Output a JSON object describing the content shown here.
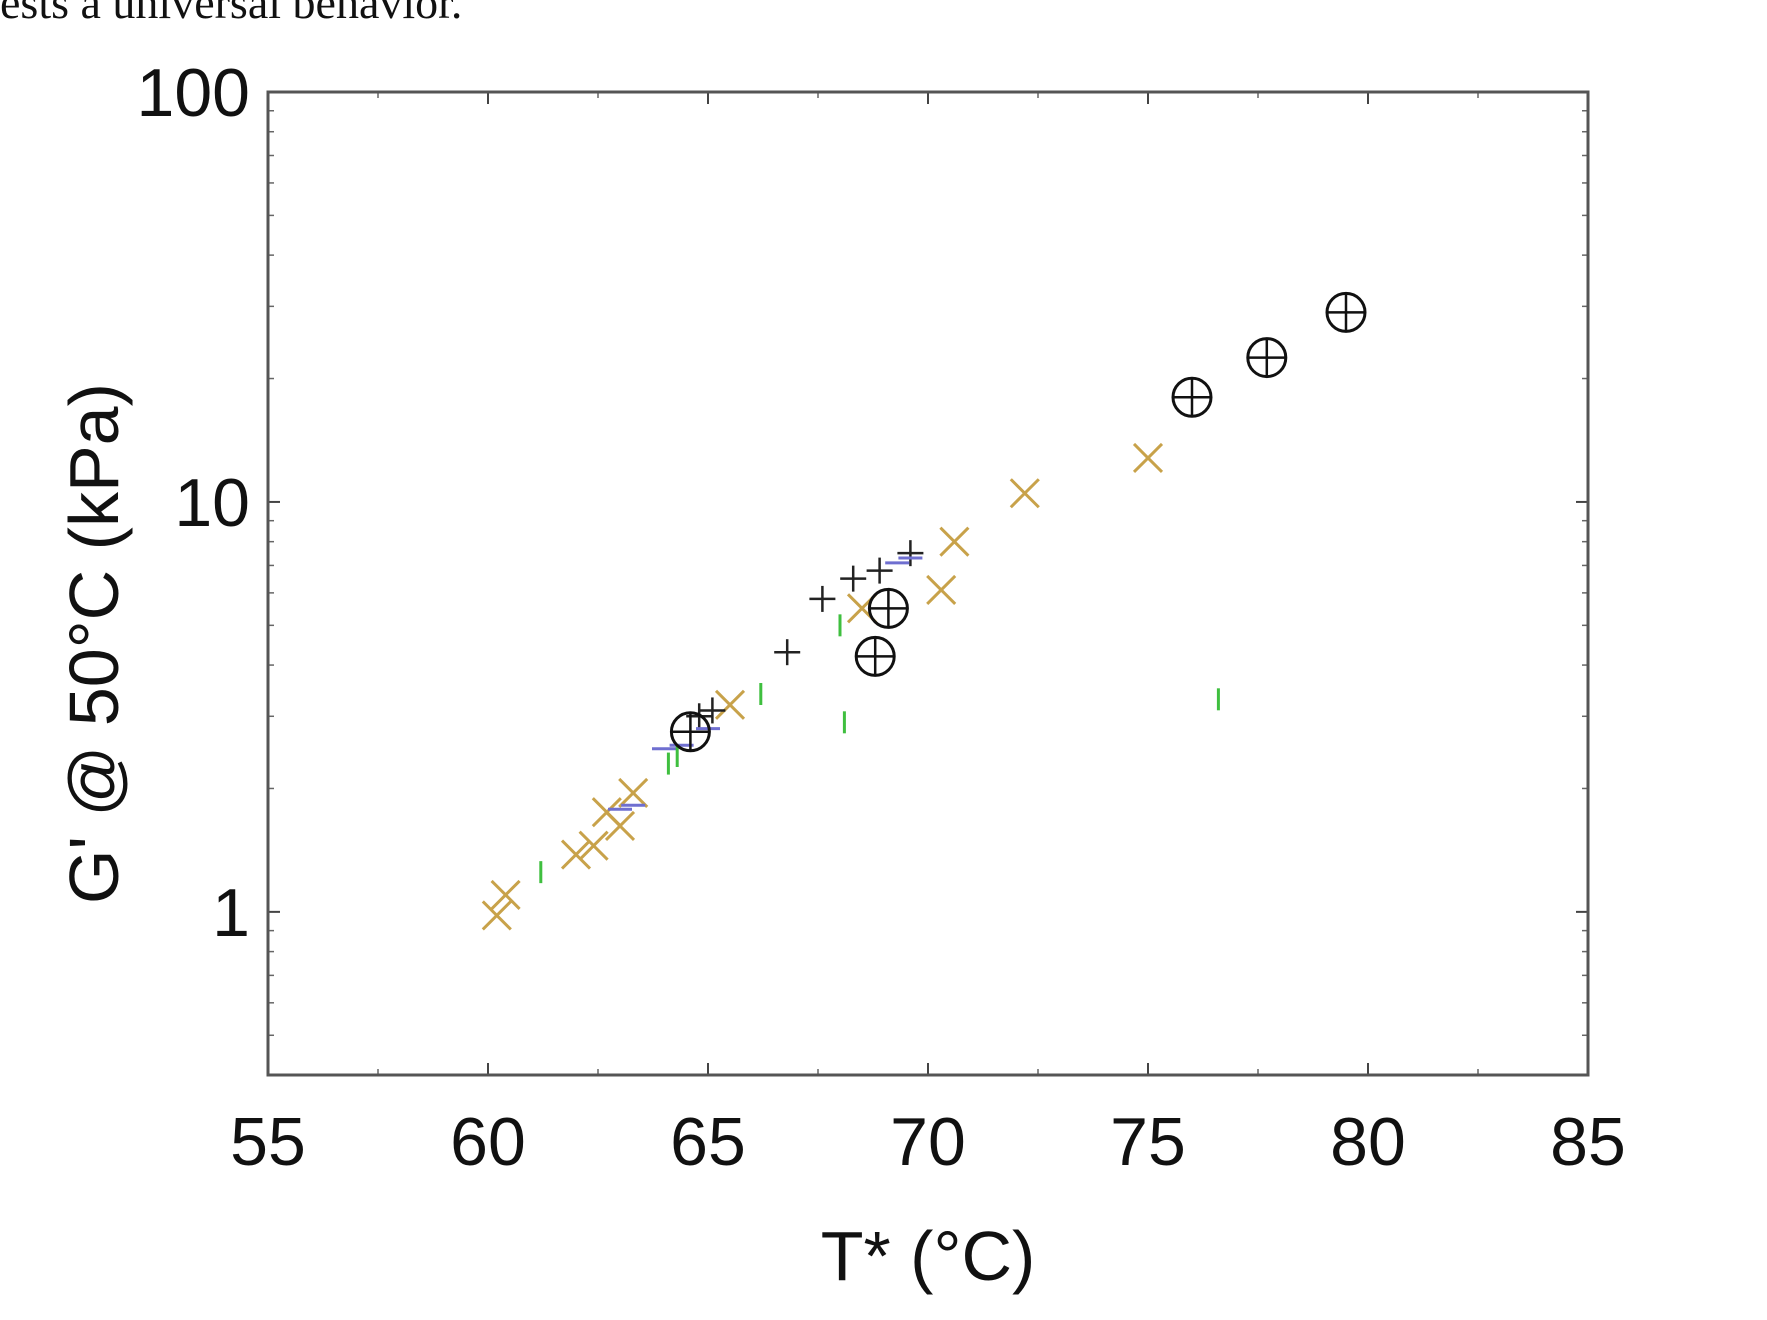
{
  "caption_fragment": "ests a universal behavior.",
  "chart_data": {
    "type": "scatter",
    "title": "",
    "xlabel": "T* (°C)",
    "ylabel": "G' @ 50°C (kPa)",
    "xlim": [
      55,
      85
    ],
    "ylim": [
      0.4,
      100
    ],
    "y_scale": "log",
    "x_ticks": [
      55,
      60,
      65,
      70,
      75,
      80,
      85
    ],
    "x_tick_labels": [
      "55",
      "60",
      "65",
      "70",
      "75",
      "80",
      "85"
    ],
    "y_ticks": [
      1,
      10,
      100
    ],
    "y_tick_labels": [
      "1",
      "10",
      "100"
    ],
    "grid": false,
    "legend": "none",
    "series": [
      {
        "marker": "cross-x",
        "color": "#c8a24a",
        "points": [
          [
            60.2,
            0.98
          ],
          [
            60.4,
            1.1
          ],
          [
            62.0,
            1.38
          ],
          [
            62.4,
            1.45
          ],
          [
            62.7,
            1.75
          ],
          [
            63.0,
            1.62
          ],
          [
            63.3,
            1.95
          ],
          [
            65.5,
            3.2
          ],
          [
            68.5,
            5.5
          ],
          [
            70.3,
            6.1
          ],
          [
            70.6,
            8.0
          ],
          [
            72.2,
            10.5
          ],
          [
            75.0,
            12.8
          ]
        ]
      },
      {
        "marker": "plus",
        "color": "#222222",
        "points": [
          [
            64.8,
            3.0
          ],
          [
            65.1,
            3.1
          ],
          [
            66.8,
            4.3
          ],
          [
            67.6,
            5.8
          ],
          [
            68.3,
            6.5
          ],
          [
            68.9,
            6.8
          ],
          [
            69.6,
            7.5
          ]
        ]
      },
      {
        "marker": "dash",
        "color": "#6f6fd0",
        "points": [
          [
            63.0,
            1.78
          ],
          [
            63.3,
            1.82
          ],
          [
            64.0,
            2.5
          ],
          [
            64.4,
            2.55
          ],
          [
            65.0,
            2.8
          ],
          [
            69.3,
            7.1
          ],
          [
            69.6,
            7.3
          ]
        ]
      },
      {
        "marker": "vbar",
        "color": "#3fbf3f",
        "points": [
          [
            61.2,
            1.25
          ],
          [
            64.1,
            2.3
          ],
          [
            64.3,
            2.4
          ],
          [
            66.2,
            3.4
          ],
          [
            68.1,
            2.9
          ],
          [
            68.0,
            5.0
          ],
          [
            76.6,
            3.3
          ]
        ]
      },
      {
        "marker": "circle-plus",
        "color": "#111111",
        "points": [
          [
            64.6,
            2.75
          ],
          [
            68.8,
            4.2
          ],
          [
            69.1,
            5.5
          ],
          [
            76.0,
            18.0
          ],
          [
            77.7,
            22.5
          ],
          [
            79.5,
            29.0
          ]
        ]
      }
    ]
  }
}
